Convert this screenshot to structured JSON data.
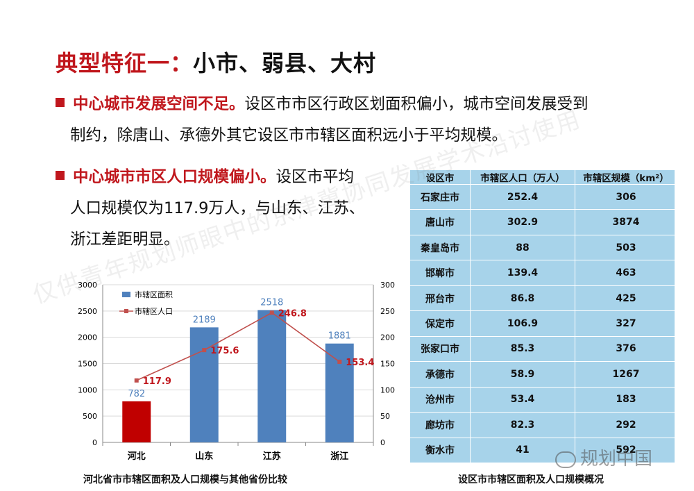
{
  "title": {
    "part1": "典型特征一：",
    "part2": "小市、弱县、大村"
  },
  "bullet1": {
    "emphasis": "中心城市发展空间不足。",
    "line1": "设区市市区行政区划面积偏小，城市空间发展受到",
    "line2": "制约，除唐山、承德外其它设区市市辖区面积远小于平均规模。"
  },
  "bullet2": {
    "emphasis": "中心城市市区人口规模偏小。",
    "line1": "设区市平均",
    "line2": "人口规模仅为117.9万人，与山东、江苏、",
    "line3": "浙江差距明显。"
  },
  "chart_data": {
    "type": "bar",
    "categories": [
      "河北",
      "山东",
      "江苏",
      "浙江"
    ],
    "series": [
      {
        "name": "市辖区面积",
        "type": "bar",
        "axis": "left",
        "values": [
          782,
          2189,
          2518,
          1881
        ]
      },
      {
        "name": "市辖区人口",
        "type": "line",
        "axis": "right",
        "values": [
          117.9,
          175.6,
          246.8,
          153.4
        ]
      }
    ],
    "y_left": {
      "range": [
        0,
        3000
      ],
      "ticks": [
        "0",
        "500",
        "1000",
        "1500",
        "2000",
        "2500",
        "3000"
      ]
    },
    "y_right": {
      "range": [
        0,
        300
      ],
      "ticks": [
        "0",
        "50",
        "100",
        "150",
        "200",
        "250",
        "300"
      ]
    },
    "data_labels_bar": [
      "782",
      "2189",
      "2518",
      "1881"
    ],
    "data_labels_line": [
      "117.9",
      "175.6",
      "246.8",
      "153.4"
    ],
    "legend_position": "top-left",
    "grid": true,
    "title": "河北省市市辖区面积及人口规模与其他省份比较",
    "colors": {
      "hebei_bar": "#c00000",
      "bar": "#4f81bd",
      "line": "#c0504d",
      "bar_label": "#4f81bd",
      "line_label": "#c0171d"
    }
  },
  "table": {
    "headers": [
      "设区市",
      "市辖区人口（万人）",
      "市辖区规模（km²）"
    ],
    "rows": [
      [
        "石家庄市",
        "252.4",
        "306"
      ],
      [
        "唐山市",
        "302.9",
        "3874"
      ],
      [
        "秦皇岛市",
        "88",
        "503"
      ],
      [
        "邯郸市",
        "139.4",
        "463"
      ],
      [
        "邢台市",
        "86.8",
        "425"
      ],
      [
        "保定市",
        "106.9",
        "327"
      ],
      [
        "张家口市",
        "85.3",
        "376"
      ],
      [
        "承德市",
        "58.9",
        "1267"
      ],
      [
        "沧州市",
        "53.4",
        "183"
      ],
      [
        "廊坊市",
        "82.3",
        "292"
      ],
      [
        "衡水市",
        "41",
        "592"
      ]
    ],
    "caption": "设区市市辖区面积及人口规模概况"
  },
  "watermark": "仅供青年规划师眼中的京津冀协同发展学术沿讨使用",
  "logo_text": "规划中国"
}
